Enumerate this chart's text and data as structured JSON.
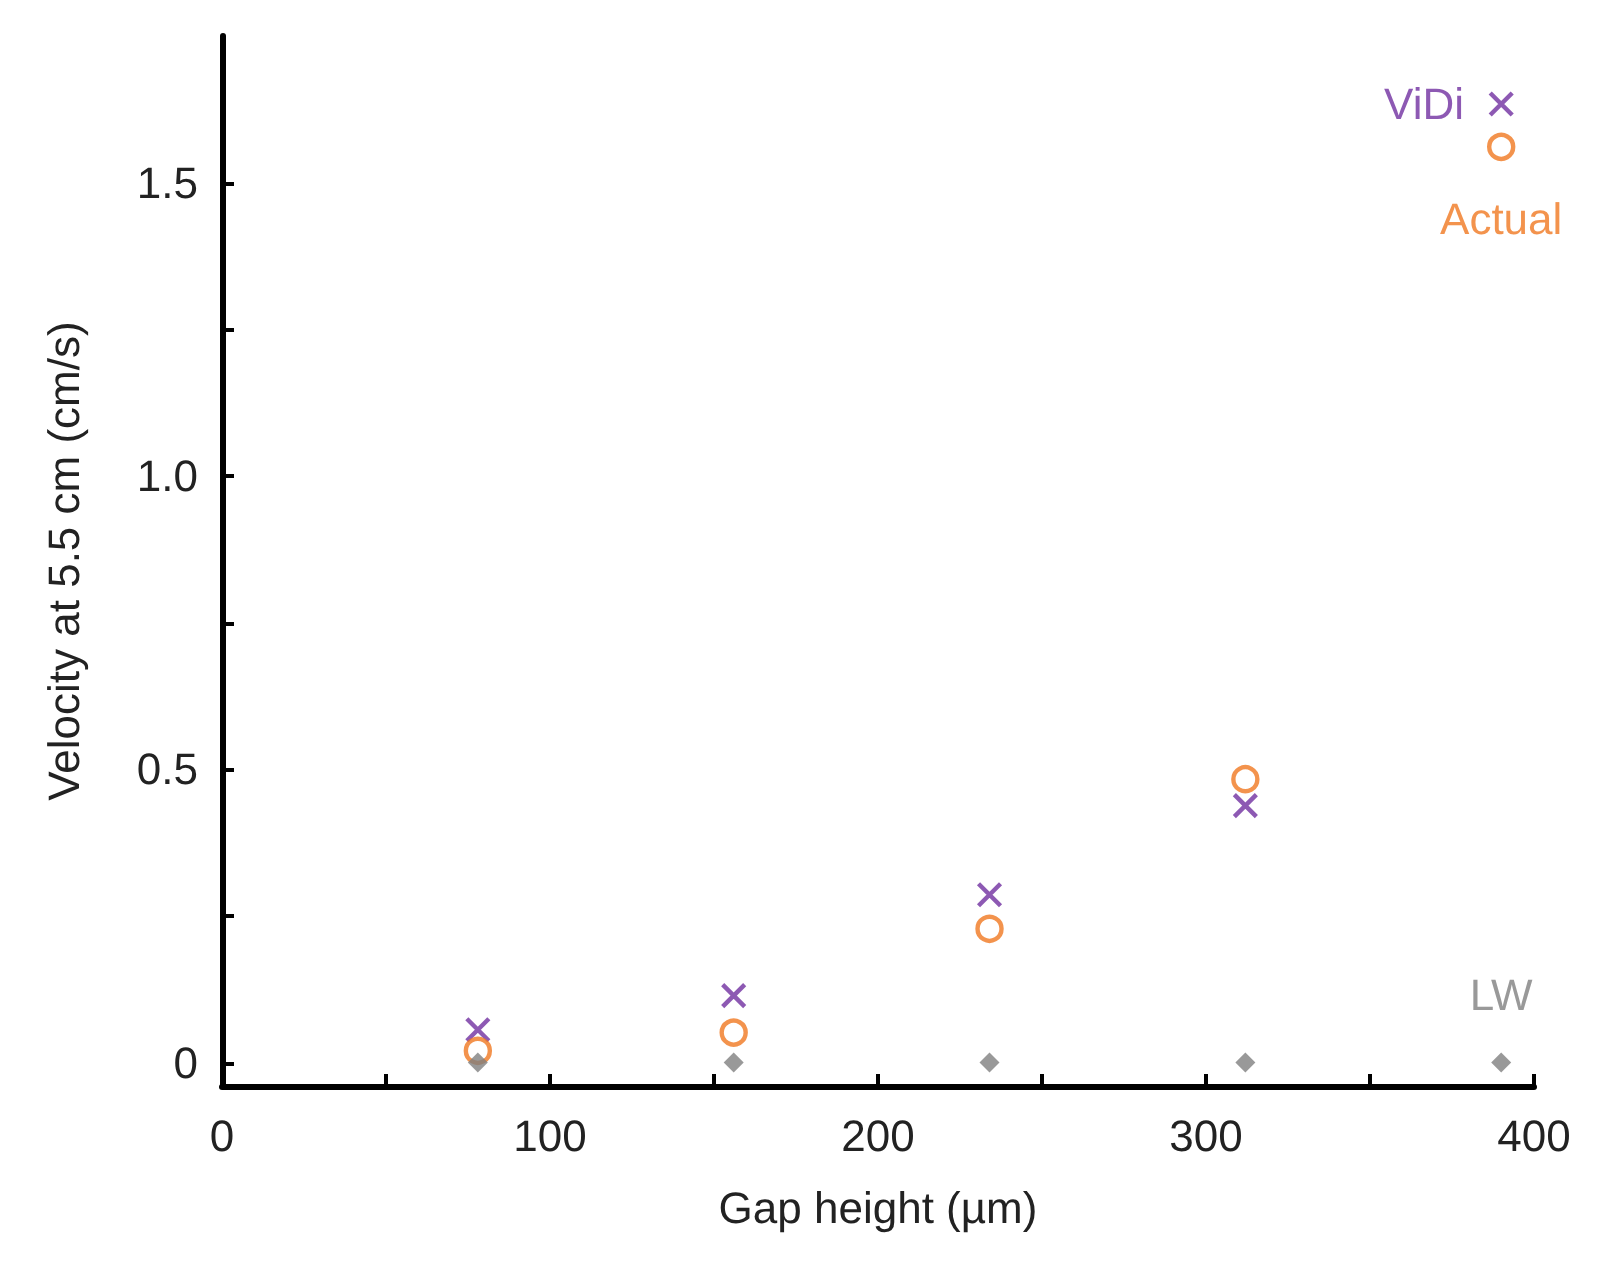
{
  "chart_data": {
    "type": "scatter",
    "xlabel": "Gap height (µm)",
    "ylabel": "Velocity at 5.5 cm (cm/s)",
    "x": [
      78,
      156,
      234,
      312,
      390
    ],
    "series": [
      {
        "name": "ViDi",
        "color": "#7030a0",
        "marker": "cross",
        "values": [
          0.056,
          0.114,
          0.286,
          0.438,
          1.634
        ]
      },
      {
        "name": "Actual",
        "color": "#f07820",
        "marker": "circle",
        "values": [
          0.02,
          0.051,
          0.228,
          0.483,
          1.561
        ]
      },
      {
        "name": "LW",
        "color": "#808080",
        "marker": "diamond",
        "values": [
          0,
          0,
          0,
          0,
          0
        ]
      }
    ],
    "xlim": [
      0,
      400
    ],
    "ylim": [
      -0.04,
      1.75
    ],
    "xticks": [
      0,
      {
        "value": 50,
        "label": null
      },
      100,
      {
        "value": 150,
        "label": null
      },
      200,
      {
        "value": 250,
        "label": null
      },
      300,
      {
        "value": 350,
        "label": null
      },
      400
    ],
    "yticks": [
      0,
      {
        "value": 0.25,
        "label": null
      },
      0.5,
      {
        "value": 0.75,
        "label": null
      },
      {
        "value": 1,
        "label": "1.0"
      },
      {
        "value": 1.25,
        "label": null
      },
      1.5
    ],
    "grid": false,
    "legend": false
  }
}
